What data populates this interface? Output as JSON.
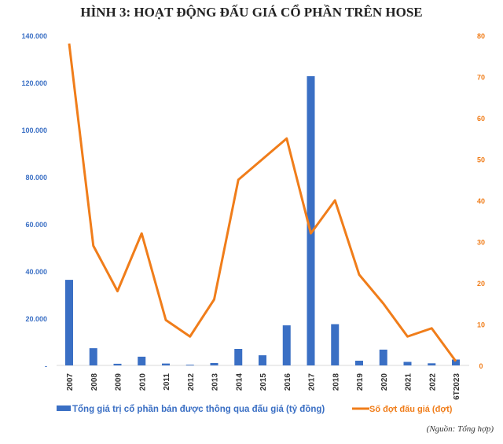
{
  "title": "HÌNH 3: HOẠT ĐỘNG ĐẤU GIÁ CỔ PHẦN TRÊN HOSE",
  "source": "(Nguồn: Tổng hợp)",
  "chart_data": {
    "type": "bar+line",
    "title": "HÌNH 3: HOẠT ĐỘNG ĐẤU GIÁ CỔ PHẦN TRÊN HOSE",
    "categories": [
      "2007",
      "2008",
      "2009",
      "2010",
      "2011",
      "2012",
      "2013",
      "2014",
      "2015",
      "2016",
      "2017",
      "2018",
      "2019",
      "2020",
      "2021",
      "2022",
      "6T2023"
    ],
    "series": [
      {
        "name": "Tổng giá trị cổ phần bán được thông qua đấu giá (tỷ đồng)",
        "type": "bar",
        "axis": "left",
        "color": "#3a6fc4",
        "values": [
          36300,
          7300,
          700,
          3700,
          800,
          300,
          1000,
          7000,
          4300,
          17000,
          122700,
          17500,
          2000,
          6700,
          1500,
          900,
          2500
        ]
      },
      {
        "name": "Số đợt đấu giá (đợt)",
        "type": "line",
        "axis": "right",
        "color": "#f07d1a",
        "values": [
          78,
          29,
          18,
          32,
          11,
          7,
          16,
          45,
          50,
          55,
          32,
          40,
          22,
          15,
          7,
          9,
          1
        ]
      }
    ],
    "left_axis": {
      "range": [
        0,
        140000
      ],
      "ticks": [
        "-",
        "20.000",
        "40.000",
        "60.000",
        "80.000",
        "100.000",
        "120.000",
        "140.000"
      ],
      "color": "#3a6fc4"
    },
    "right_axis": {
      "range": [
        0,
        80
      ],
      "ticks": [
        "0",
        "10",
        "20",
        "30",
        "40",
        "50",
        "60",
        "70",
        "80"
      ],
      "color": "#f07d1a"
    },
    "legend": "bottom",
    "grid": false
  }
}
